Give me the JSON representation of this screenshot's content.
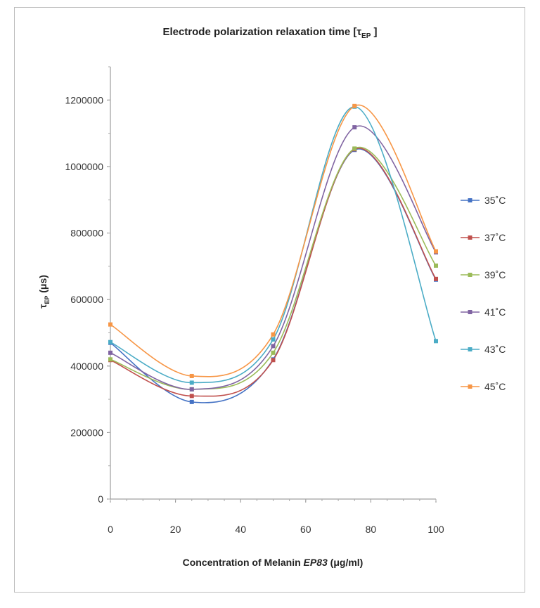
{
  "chart_data": {
    "type": "line",
    "title": "Electrode polarization relaxation time [τ",
    "title_sub": "EP",
    "title_end": " ]",
    "xlabel_main": "Concentration of Melanin ",
    "xlabel_italic": "EP83",
    "xlabel_unit": " (μg/ml)",
    "ylabel_main": "τ",
    "ylabel_sub": "EP",
    "ylabel_unit": " (μs)",
    "xlim": [
      0,
      100
    ],
    "ylim": [
      0,
      1300000
    ],
    "x_ticks": [
      0,
      20,
      40,
      60,
      80,
      100
    ],
    "y_ticks": [
      0,
      200000,
      400000,
      600000,
      800000,
      1000000,
      1200000
    ],
    "x": [
      0,
      25,
      50,
      75,
      100
    ],
    "legend_position": "right",
    "series": [
      {
        "name": "35˚C",
        "color": "#4472C4",
        "values": [
          470000,
          292000,
          420000,
          1050000,
          660000
        ]
      },
      {
        "name": "37˚C",
        "color": "#C0504D",
        "values": [
          418000,
          310000,
          418000,
          1052000,
          662000
        ]
      },
      {
        "name": "39˚C",
        "color": "#9BBB59",
        "values": [
          420000,
          330000,
          440000,
          1054000,
          702000
        ]
      },
      {
        "name": "41˚C",
        "color": "#8064A2",
        "values": [
          440000,
          330000,
          460000,
          1118000,
          742000
        ]
      },
      {
        "name": "43˚C",
        "color": "#4BACC6",
        "values": [
          472000,
          350000,
          480000,
          1180000,
          475000
        ]
      },
      {
        "name": "45˚C",
        "color": "#F79646",
        "values": [
          525000,
          370000,
          495000,
          1182000,
          745000
        ]
      }
    ]
  }
}
